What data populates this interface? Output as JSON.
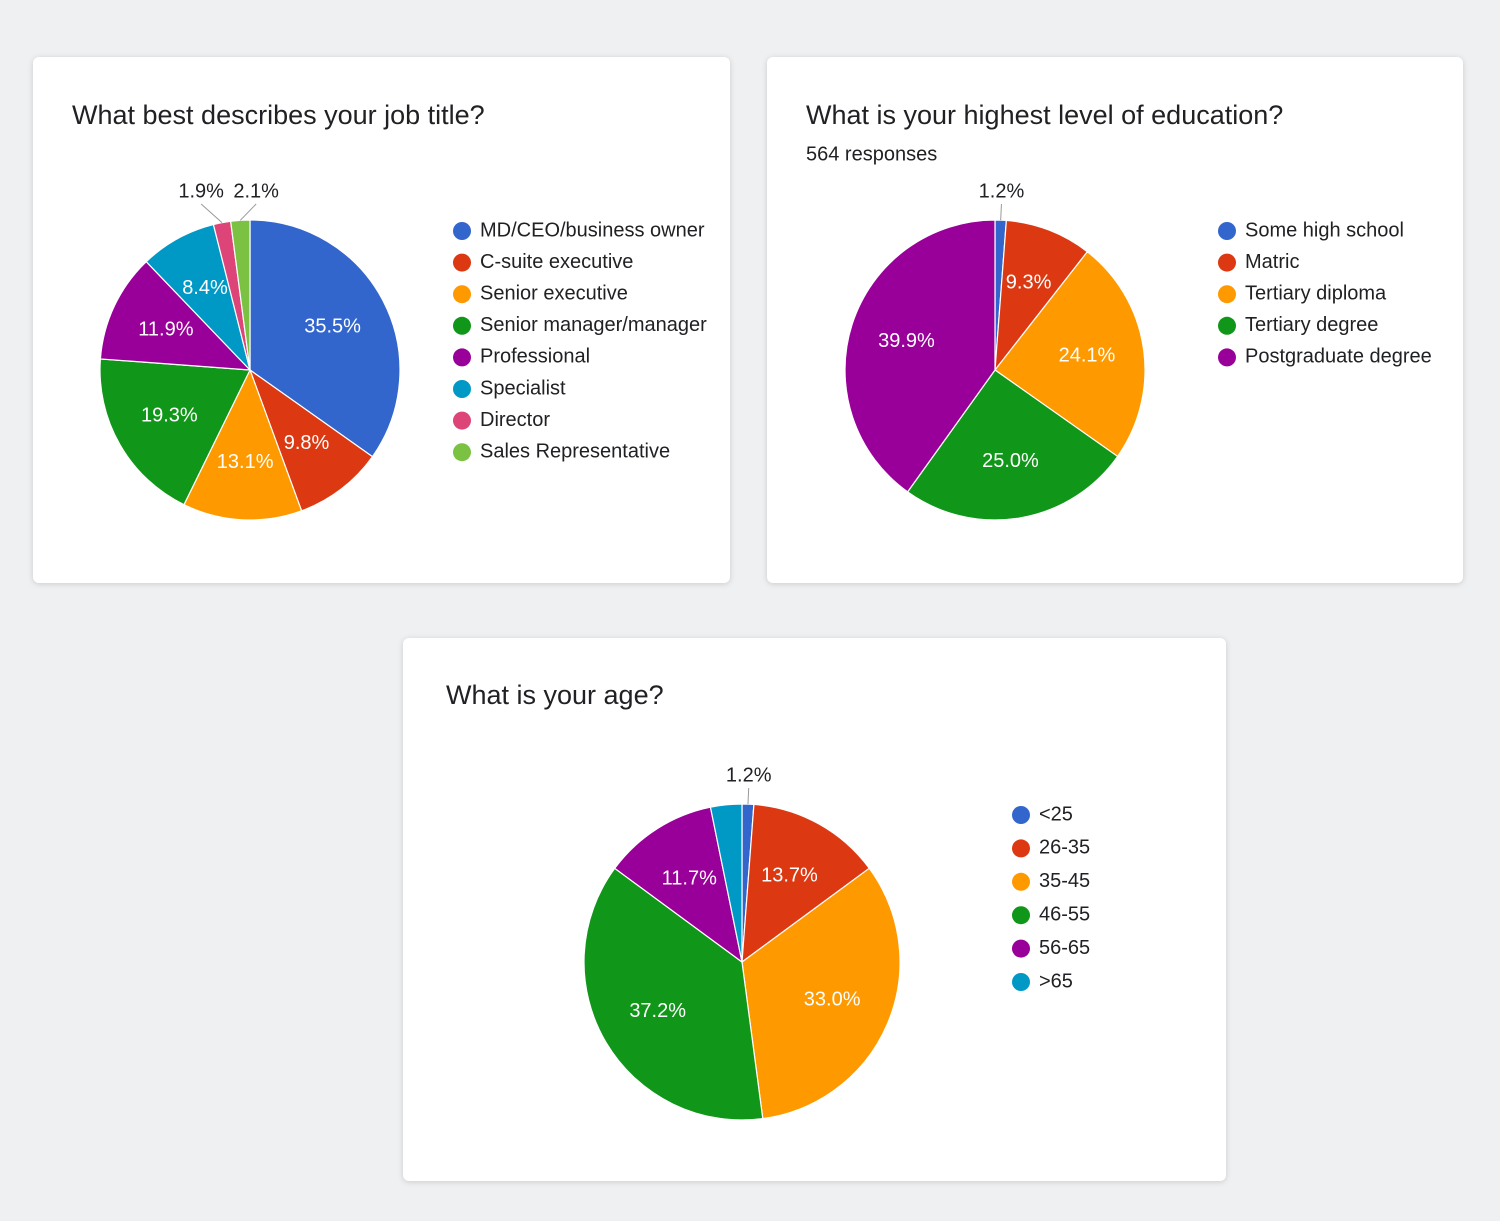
{
  "chart_data": [
    {
      "type": "pie",
      "title": "What best describes your job title?",
      "categories": [
        "MD/CEO/business owner",
        "C-suite executive",
        "Senior executive",
        "Senior manager/manager",
        "Professional",
        "Specialist",
        "Director",
        "Sales Representative"
      ],
      "values": [
        35.5,
        9.8,
        13.1,
        19.3,
        11.9,
        8.4,
        1.9,
        2.1
      ],
      "value_labels": [
        "35.5%",
        "9.8%",
        "13.1%",
        "19.3%",
        "11.9%",
        "8.4%",
        "1.9%",
        "2.1%"
      ],
      "colors": [
        "#3366cc",
        "#dc3912",
        "#ff9900",
        "#109618",
        "#990099",
        "#0099c6",
        "#dd4477",
        "#7cc242"
      ],
      "legend": "right"
    },
    {
      "type": "pie",
      "title": "What is your highest level of education?",
      "subtitle": "564 responses",
      "categories": [
        "Some high school",
        "Matric",
        "Tertiary diploma",
        "Tertiary degree",
        "Postgraduate degree"
      ],
      "values": [
        1.2,
        9.3,
        24.1,
        25.0,
        39.9
      ],
      "value_labels": [
        "1.2%",
        "9.3%",
        "24.1%",
        "25.0%",
        "39.9%"
      ],
      "colors": [
        "#3366cc",
        "#dc3912",
        "#ff9900",
        "#109618",
        "#990099"
      ],
      "legend": "right"
    },
    {
      "type": "pie",
      "title": "What is your age?",
      "categories": [
        "<25",
        "26-35",
        "35-45",
        "46-55",
        "56-65",
        ">65"
      ],
      "values": [
        1.2,
        13.7,
        33.0,
        37.2,
        11.7,
        3.2
      ],
      "value_labels": [
        "1.2%",
        "13.7%",
        "33.0%",
        "37.2%",
        "11.7%",
        null
      ],
      "colors": [
        "#3366cc",
        "#dc3912",
        "#ff9900",
        "#109618",
        "#990099",
        "#0099c6"
      ],
      "legend": "right"
    }
  ]
}
